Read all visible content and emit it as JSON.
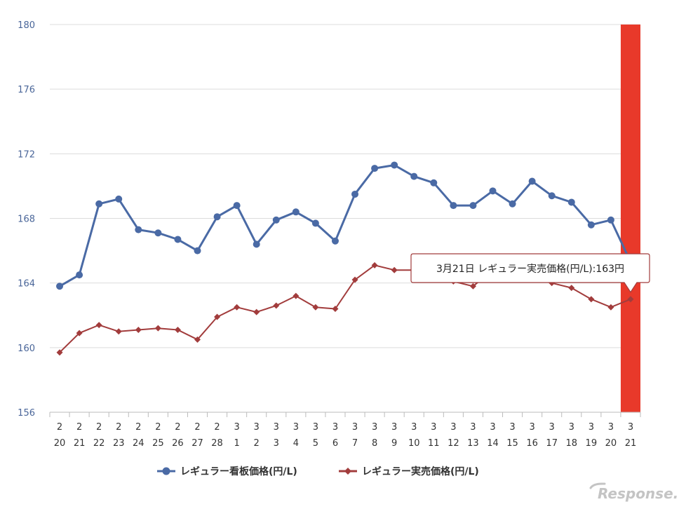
{
  "chart_data": {
    "type": "line",
    "categories": [
      [
        "2",
        "20"
      ],
      [
        "2",
        "21"
      ],
      [
        "2",
        "22"
      ],
      [
        "2",
        "23"
      ],
      [
        "2",
        "24"
      ],
      [
        "2",
        "25"
      ],
      [
        "2",
        "26"
      ],
      [
        "2",
        "27"
      ],
      [
        "2",
        "28"
      ],
      [
        "3",
        "1"
      ],
      [
        "3",
        "2"
      ],
      [
        "3",
        "3"
      ],
      [
        "3",
        "4"
      ],
      [
        "3",
        "5"
      ],
      [
        "3",
        "6"
      ],
      [
        "3",
        "7"
      ],
      [
        "3",
        "8"
      ],
      [
        "3",
        "9"
      ],
      [
        "3",
        "10"
      ],
      [
        "3",
        "11"
      ],
      [
        "3",
        "12"
      ],
      [
        "3",
        "13"
      ],
      [
        "3",
        "14"
      ],
      [
        "3",
        "15"
      ],
      [
        "3",
        "16"
      ],
      [
        "3",
        "17"
      ],
      [
        "3",
        "18"
      ],
      [
        "3",
        "19"
      ],
      [
        "3",
        "20"
      ],
      [
        "3",
        "21"
      ]
    ],
    "yticks": [
      "156",
      "160",
      "164",
      "168",
      "172",
      "176",
      "180"
    ],
    "ylim": [
      156,
      180
    ],
    "grid": true,
    "legend_position": "bottom",
    "highlight_category_index": 29,
    "highlight_color": "#e8392a",
    "series": [
      {
        "name": "レギュラー看板価格(円/L)",
        "color": "#4a6aa5",
        "marker": "circle",
        "values": [
          163.8,
          164.5,
          168.9,
          169.2,
          167.3,
          167.1,
          166.7,
          166.0,
          168.1,
          168.8,
          166.4,
          167.9,
          168.4,
          167.7,
          166.6,
          169.5,
          171.1,
          171.3,
          170.6,
          170.2,
          168.8,
          168.8,
          169.7,
          168.9,
          170.3,
          169.4,
          169.0,
          167.6,
          167.9,
          165.3
        ]
      },
      {
        "name": "レギュラー実売価格(円/L)",
        "color": "#a23c3c",
        "marker": "diamond",
        "values": [
          159.7,
          160.9,
          161.4,
          161.0,
          161.1,
          161.2,
          161.1,
          160.5,
          161.9,
          162.5,
          162.2,
          162.6,
          163.2,
          162.5,
          162.4,
          164.2,
          165.1,
          164.8,
          164.8,
          164.7,
          164.1,
          163.8,
          164.8,
          164.5,
          164.6,
          164.0,
          163.7,
          163.0,
          162.5,
          163.0
        ]
      }
    ],
    "tooltip": {
      "text": "3月21日 レギュラー実売価格(円/L):163円",
      "series_index": 1,
      "category_index": 29
    }
  },
  "watermark": "Response."
}
